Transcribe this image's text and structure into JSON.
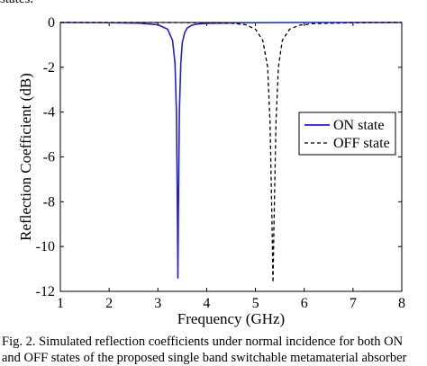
{
  "page": {
    "top_fragment": "states.",
    "caption_lines": [
      "Fig. 2. Simulated reflection coefficients under normal incidence for both ON",
      "and OFF states of the proposed single band switchable metamaterial absorber"
    ]
  },
  "chart_data": {
    "type": "line",
    "title": "",
    "xlabel": "Frequency (GHz)",
    "ylabel": "Reflection Coefficient (dB)",
    "xlim": [
      1,
      8
    ],
    "ylim": [
      -12,
      0
    ],
    "xticks": [
      1,
      2,
      3,
      4,
      5,
      6,
      7,
      8
    ],
    "yticks": [
      0,
      -2,
      -4,
      -6,
      -8,
      -10,
      -12
    ],
    "grid": false,
    "legend_position": "right",
    "series": [
      {
        "name": "ON state",
        "color": "#1f1fdc",
        "style": "solid",
        "x": [
          1.0,
          2.0,
          2.6,
          3.0,
          3.2,
          3.3,
          3.35,
          3.38,
          3.4,
          3.41,
          3.42,
          3.44,
          3.47,
          3.5,
          3.55,
          3.6,
          3.7,
          3.8,
          4.0,
          4.5,
          5.0,
          6.0,
          7.0,
          8.0
        ],
        "y": [
          0,
          -0.01,
          -0.03,
          -0.1,
          -0.3,
          -0.8,
          -1.8,
          -4.0,
          -8.5,
          -11.4,
          -8.5,
          -4.0,
          -1.8,
          -0.9,
          -0.45,
          -0.25,
          -0.12,
          -0.07,
          -0.04,
          -0.02,
          -0.01,
          0,
          0,
          0
        ]
      },
      {
        "name": "OFF state",
        "color": "#000000",
        "style": "dashed",
        "x": [
          1.0,
          3.0,
          4.0,
          4.5,
          4.8,
          5.0,
          5.15,
          5.25,
          5.3,
          5.34,
          5.36,
          5.38,
          5.42,
          5.47,
          5.55,
          5.7,
          5.9,
          6.2,
          7.0,
          8.0
        ],
        "y": [
          0,
          0,
          -0.01,
          -0.03,
          -0.1,
          -0.3,
          -0.8,
          -2.0,
          -4.5,
          -9.0,
          -11.6,
          -9.0,
          -4.5,
          -2.0,
          -0.8,
          -0.3,
          -0.12,
          -0.05,
          -0.01,
          0
        ]
      }
    ]
  }
}
